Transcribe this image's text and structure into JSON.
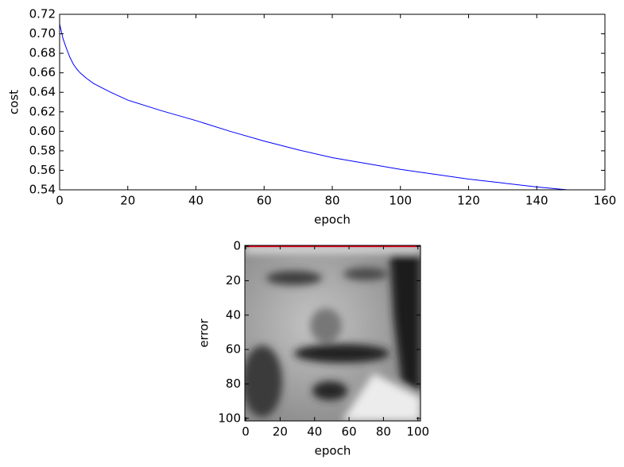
{
  "chart_data": [
    {
      "type": "line",
      "xlabel": "epoch",
      "ylabel": "cost",
      "color": "#0000ff",
      "x": [
        0,
        1,
        2,
        3,
        4,
        5,
        6,
        8,
        10,
        15,
        20,
        30,
        40,
        50,
        60,
        70,
        80,
        90,
        100,
        110,
        120,
        130,
        140,
        149
      ],
      "values": [
        0.71,
        0.695,
        0.685,
        0.676,
        0.669,
        0.664,
        0.66,
        0.654,
        0.649,
        0.64,
        0.632,
        0.621,
        0.611,
        0.6,
        0.59,
        0.581,
        0.573,
        0.567,
        0.561,
        0.556,
        0.551,
        0.547,
        0.543,
        0.54
      ],
      "xlim": [
        0,
        160
      ],
      "xticks": [
        0,
        20,
        40,
        60,
        80,
        100,
        120,
        140,
        160
      ],
      "ylim": [
        0.54,
        0.72
      ],
      "yticks": [
        0.54,
        0.56,
        0.58,
        {
          "value": 0.6,
          "label": "0.60"
        },
        0.62,
        0.64,
        0.66,
        0.68,
        {
          "value": 0.7,
          "label": "0.70"
        },
        0.72
      ]
    },
    {
      "type": "image",
      "xlabel": "epoch",
      "ylabel": "error",
      "color": "#e0001b",
      "x": [
        0,
        100
      ],
      "values": [
        0,
        0
      ],
      "xlim": [
        -0.5,
        101.5
      ],
      "xticks": [
        0,
        20,
        40,
        60,
        80,
        100
      ],
      "ylim": [
        101.5,
        -0.5
      ],
      "yticks": [
        0,
        20,
        40,
        60,
        80,
        100
      ]
    }
  ]
}
